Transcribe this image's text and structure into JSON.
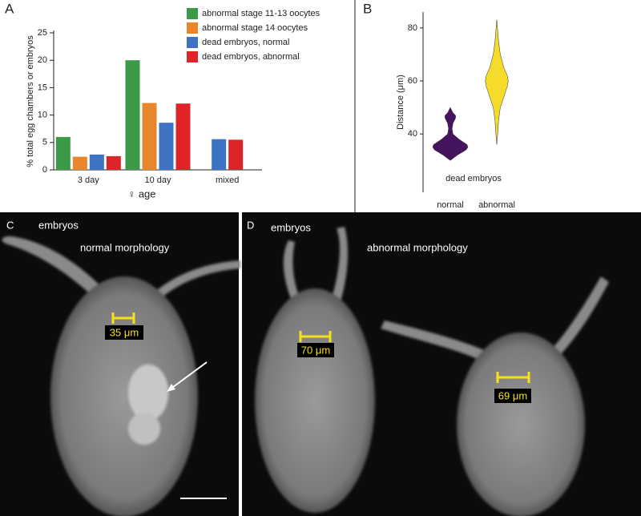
{
  "chart_data": [
    {
      "type": "bar",
      "panel": "A",
      "y_label": "% total egg chambers or embryos",
      "x_label": "♀ age",
      "categories": [
        "3 day",
        "10 day",
        "mixed"
      ],
      "series": [
        {
          "name": "abnormal stage 11-13 oocytes",
          "color": "#3a9a47",
          "values": [
            6,
            20,
            null
          ]
        },
        {
          "name": "abnormal stage 14 oocytes",
          "color": "#e8862c",
          "values": [
            2.4,
            12.2,
            null
          ]
        },
        {
          "name": "dead embryos, normal",
          "color": "#3e72c2",
          "values": [
            2.8,
            8.6,
            5.6
          ]
        },
        {
          "name": "dead embryos, abnormal",
          "color": "#dd2428",
          "values": [
            2.5,
            12.1,
            5.5
          ]
        }
      ],
      "ylim": [
        0,
        25
      ],
      "yticks": [
        0,
        5,
        10,
        15,
        20,
        25
      ]
    },
    {
      "type": "violin",
      "panel": "B",
      "y_label": "Distance (μm)",
      "annotation": "dead embryos",
      "categories": [
        "normal",
        "abnormal"
      ],
      "series": [
        {
          "name": "normal",
          "color": "#44155e",
          "y": [
            30,
            32,
            34,
            35,
            36,
            38,
            40,
            42,
            44,
            46,
            47,
            48,
            50
          ],
          "density": [
            0,
            0.4,
            0.9,
            1,
            0.95,
            0.5,
            0.15,
            0.1,
            0.15,
            0.3,
            0.3,
            0.15,
            0
          ]
        },
        {
          "name": "abnormal",
          "color": "#f6dc2a",
          "y": [
            36,
            40,
            45,
            50,
            55,
            58,
            60,
            62,
            65,
            70,
            75,
            80,
            83
          ],
          "density": [
            0,
            0.05,
            0.1,
            0.2,
            0.45,
            0.6,
            0.65,
            0.6,
            0.4,
            0.2,
            0.1,
            0.04,
            0
          ]
        }
      ],
      "ylim": [
        18,
        86
      ],
      "yticks": [
        40,
        60,
        80
      ]
    }
  ],
  "panel_c": {
    "label": "C",
    "caption": "embryos",
    "morphology": "normal morphology",
    "measure": "35 μm"
  },
  "panel_d": {
    "label": "D",
    "caption": "embryos",
    "morphology": "abnormal morphology",
    "measure_left": "70 μm",
    "measure_right": "69 μm"
  }
}
